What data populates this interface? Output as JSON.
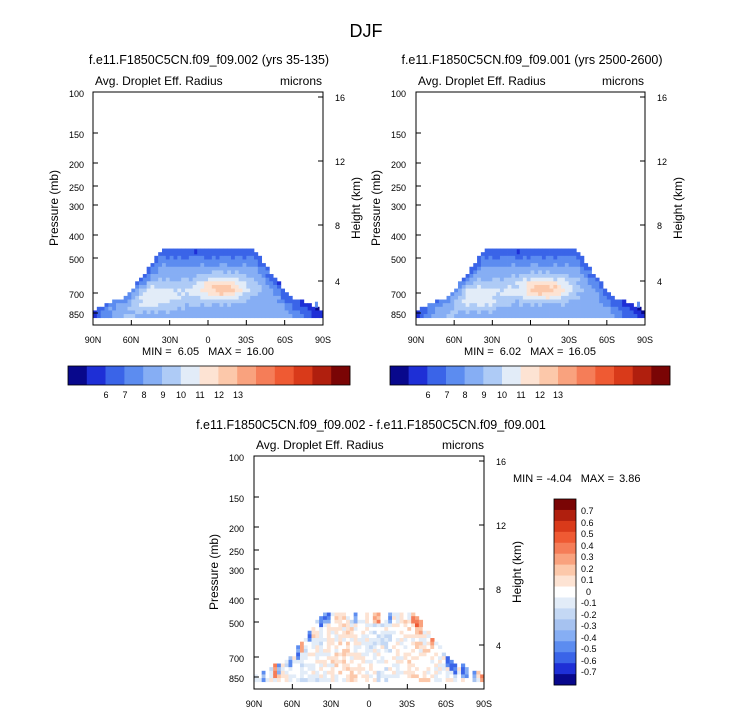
{
  "figure": {
    "title": "DJF"
  },
  "colors": {
    "base_scale": [
      "#08088c",
      "#1e2fd6",
      "#3a64e8",
      "#5c8cf0",
      "#86aef4",
      "#aecbf6",
      "#e2ecf8",
      "#fde3d3",
      "#fcc8aa",
      "#f9a27e",
      "#f57d58",
      "#ef5a33",
      "#d93a1a",
      "#b01f0e",
      "#7a0505"
    ],
    "diff_scale": [
      "#7a0505",
      "#b01f0e",
      "#d93a1a",
      "#ef5a33",
      "#f57d58",
      "#f9a27e",
      "#fcc8aa",
      "#fde3d3",
      "#ffffff",
      "#e2ecf8",
      "#c4d8f4",
      "#a6c2f0",
      "#86aef4",
      "#5c8cf0",
      "#3a64e8",
      "#1e2fd6",
      "#08088c"
    ]
  },
  "chart_data": [
    {
      "type": "heatmap",
      "id": "panel-1",
      "title": "f.e11.F1850C5CN.f09_f09.002 (yrs 35-135)",
      "left_label": "Avg. Droplet Eff. Radius",
      "right_label": "microns",
      "xlabel": "",
      "ylabel": "Pressure (mb)",
      "ylabel_right": "Height (km)",
      "x_ticks": [
        "90N",
        "60N",
        "30N",
        "0",
        "30S",
        "60S",
        "90S"
      ],
      "y_ticks": [
        "100",
        "150",
        "200",
        "250",
        "300",
        "400",
        "500",
        "700",
        "850"
      ],
      "y_ticks_right": [
        "16",
        "12",
        "8",
        "4"
      ],
      "stats": {
        "min_label": "MIN =",
        "min": "6.05",
        "max_label": "MAX =",
        "max": "16.00"
      },
      "colorbar": {
        "labels": [
          "6",
          "7",
          "8",
          "9",
          "10",
          "11",
          "12",
          "13"
        ]
      }
    },
    {
      "type": "heatmap",
      "id": "panel-2",
      "title": "f.e11.F1850C5CN.f09_f09.001 (yrs 2500-2600)",
      "left_label": "Avg. Droplet Eff. Radius",
      "right_label": "microns",
      "xlabel": "",
      "ylabel": "Pressure (mb)",
      "ylabel_right": "Height (km)",
      "x_ticks": [
        "90N",
        "60N",
        "30N",
        "0",
        "30S",
        "60S",
        "90S"
      ],
      "y_ticks": [
        "100",
        "150",
        "200",
        "250",
        "300",
        "400",
        "500",
        "700",
        "850"
      ],
      "y_ticks_right": [
        "16",
        "12",
        "8",
        "4"
      ],
      "stats": {
        "min_label": "MIN =",
        "min": "6.02",
        "max_label": "MAX =",
        "max": "16.05"
      },
      "colorbar": {
        "labels": [
          "6",
          "7",
          "8",
          "9",
          "10",
          "11",
          "12",
          "13"
        ]
      }
    },
    {
      "type": "heatmap",
      "id": "panel-3",
      "title": "f.e11.F1850C5CN.f09_f09.002 - f.e11.F1850C5CN.f09_f09.001",
      "left_label": "Avg. Droplet Eff. Radius",
      "right_label": "microns",
      "xlabel": "",
      "ylabel": "Pressure (mb)",
      "ylabel_right": "Height (km)",
      "x_ticks": [
        "90N",
        "60N",
        "30N",
        "0",
        "30S",
        "60S",
        "90S"
      ],
      "y_ticks": [
        "100",
        "150",
        "200",
        "250",
        "300",
        "400",
        "500",
        "700",
        "850"
      ],
      "y_ticks_right": [
        "16",
        "12",
        "8",
        "4"
      ],
      "stats": {
        "min_label": "MIN =",
        "min": "-4.04",
        "max_label": "MAX =",
        "max": "3.86"
      },
      "colorbar": {
        "labels": [
          "0.7",
          "0.6",
          "0.5",
          "0.4",
          "0.3",
          "0.2",
          "0.1",
          "0",
          "-0.1",
          "-0.2",
          "-0.3",
          "-0.4",
          "-0.5",
          "-0.6",
          "-0.7"
        ]
      }
    }
  ]
}
